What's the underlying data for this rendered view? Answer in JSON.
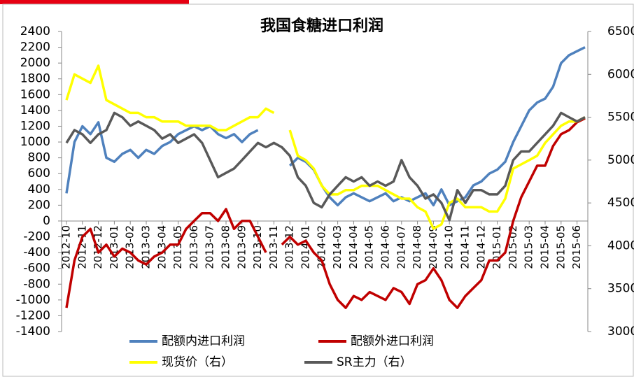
{
  "chart_data": {
    "type": "line",
    "title": "我国食糖进口利润",
    "categories": [
      "2012-10",
      null,
      "2012-11",
      null,
      "2012-12",
      null,
      "2013-01",
      null,
      "2013-02",
      null,
      "2013-03",
      null,
      "2013-04",
      null,
      "2013-05",
      null,
      "2013-06",
      null,
      "2013-07",
      null,
      "2013-08",
      null,
      "2013-09",
      null,
      "2013-10",
      null,
      "2013-11",
      null,
      "2013-12",
      null,
      "2014-01",
      null,
      "2014-02",
      null,
      "2014-03",
      null,
      "2014-04",
      null,
      "2014-05",
      null,
      "2014-06",
      null,
      "2014-07",
      null,
      "2014-08",
      null,
      "2014-09",
      null,
      "2014-10",
      null,
      "2014-11",
      null,
      "2014-12",
      null,
      "2015-01",
      null,
      "2015-02",
      null,
      "2015-03",
      null,
      "2015-04",
      null,
      "2015-05",
      null,
      "2015-06",
      null
    ],
    "ylim": [
      -1400,
      2400
    ],
    "yticks": [
      -1400,
      -1200,
      -1000,
      -800,
      -600,
      -400,
      -200,
      0,
      200,
      400,
      600,
      800,
      1000,
      1200,
      1400,
      1600,
      1800,
      2000,
      2200,
      2400
    ],
    "y2lim": [
      3000,
      6500
    ],
    "y2ticks": [
      3000,
      3500,
      4000,
      4500,
      5000,
      5500,
      6000,
      6500
    ],
    "series": [
      {
        "name": "配额内进口利润",
        "color": "#4f81bd",
        "values": [
          350,
          1000,
          1200,
          1100,
          1250,
          800,
          750,
          850,
          900,
          800,
          900,
          850,
          950,
          1000,
          1100,
          1150,
          1200,
          1150,
          1200,
          1100,
          1050,
          1100,
          1000,
          1100,
          1150,
          null,
          null,
          null,
          700,
          800,
          750,
          650,
          450,
          300,
          200,
          300,
          350,
          300,
          250,
          300,
          350,
          250,
          300,
          250,
          300,
          350,
          200,
          400,
          200,
          250,
          300,
          450,
          500,
          600,
          650,
          750,
          1000,
          1200,
          1400,
          1500,
          1550,
          1700,
          2000,
          2100,
          2150,
          2200
        ]
      },
      {
        "name": "配额外进口利润",
        "color": "#c00000",
        "values": [
          -1100,
          -500,
          -200,
          -100,
          -400,
          -300,
          -450,
          -350,
          -400,
          -500,
          -550,
          -450,
          -400,
          -300,
          -300,
          -100,
          0,
          100,
          100,
          0,
          150,
          -100,
          0,
          0,
          -200,
          -400,
          null,
          -300,
          -200,
          -300,
          -250,
          -400,
          -500,
          -800,
          -1000,
          -1100,
          -950,
          -1000,
          -900,
          -950,
          -1000,
          -850,
          -900,
          -1050,
          -800,
          -750,
          -600,
          -750,
          -1000,
          -1100,
          -950,
          -850,
          -750,
          -500,
          -500,
          -400,
          0,
          300,
          500,
          700,
          700,
          950,
          1100,
          1150,
          1250,
          1300
        ]
      },
      {
        "name": "现货价（右）",
        "color": "#ffff00",
        "axis": "y2",
        "values": [
          5700,
          6000,
          5950,
          5900,
          6100,
          5700,
          5650,
          5600,
          5550,
          5550,
          5500,
          5500,
          5450,
          5450,
          5450,
          5400,
          5400,
          5400,
          5400,
          5350,
          5350,
          5400,
          5450,
          5500,
          5500,
          5600,
          5550,
          null,
          5350,
          5050,
          5000,
          4900,
          4700,
          4600,
          4600,
          4650,
          4650,
          4700,
          4700,
          4700,
          4650,
          4600,
          4550,
          4550,
          4450,
          4400,
          4200,
          4250,
          4500,
          4550,
          4450,
          4450,
          4450,
          4400,
          4400,
          4550,
          4900,
          4950,
          5000,
          5050,
          5200,
          5300,
          5400,
          5450,
          5450,
          5500
        ]
      },
      {
        "name": "SR主力（右）",
        "color": "#595959",
        "axis": "y2",
        "values": [
          5200,
          5350,
          5300,
          5200,
          5300,
          5350,
          5550,
          5500,
          5400,
          5450,
          5400,
          5350,
          5250,
          5300,
          5200,
          5250,
          5300,
          5200,
          5000,
          4800,
          4850,
          4900,
          5000,
          5100,
          5200,
          5150,
          5200,
          5150,
          5050,
          4800,
          4700,
          4500,
          4450,
          4600,
          4700,
          4800,
          4750,
          4800,
          4700,
          4750,
          4700,
          4750,
          5000,
          4800,
          4700,
          4550,
          4600,
          4500,
          4300,
          4650,
          4500,
          4650,
          4650,
          4600,
          4600,
          4700,
          5000,
          5100,
          5100,
          5200,
          5300,
          5400,
          5550,
          5500,
          5450,
          5500
        ]
      }
    ]
  }
}
